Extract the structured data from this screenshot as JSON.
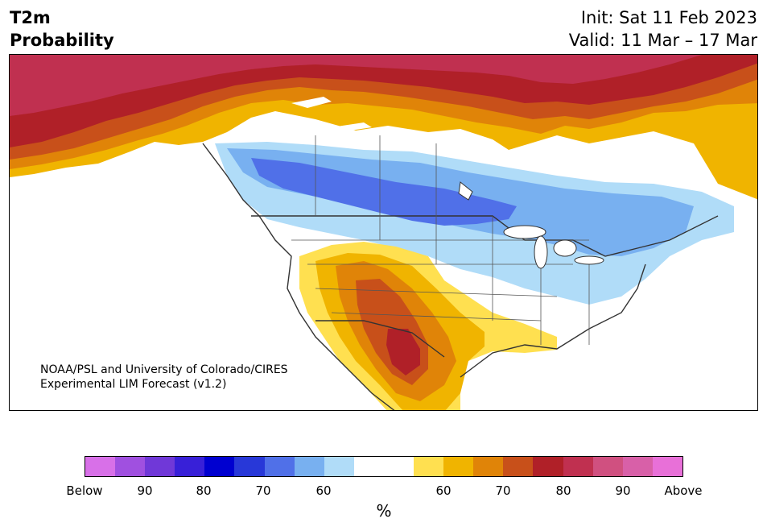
{
  "header": {
    "title_line1": "T2m",
    "title_line2": "Probability",
    "init_label": "Init: Sat 11 Feb 2023",
    "valid_label": "Valid: 11 Mar – 17 Mar"
  },
  "map": {
    "credit_line1": "NOAA/PSL and University of Colorado/CIRES",
    "credit_line2": "Experimental LIM Forecast (v1.2)",
    "region": "North America"
  },
  "colorbar": {
    "units": "%",
    "colors_below": [
      "#d870e8",
      "#a050e0",
      "#7038d8",
      "#3820d8",
      "#0000d0",
      "#2838d8",
      "#5070e8",
      "#78b0f0",
      "#b0dcf8"
    ],
    "neutral_color": "#ffffff",
    "colors_above": [
      "#ffe050",
      "#f0b400",
      "#e08408",
      "#c8501a",
      "#b02028",
      "#c03050",
      "#d05080",
      "#d860a8",
      "#e870d8"
    ],
    "tick_labels": [
      "Below",
      "90",
      "80",
      "70",
      "60",
      "60",
      "70",
      "80",
      "90",
      "Above"
    ]
  }
}
